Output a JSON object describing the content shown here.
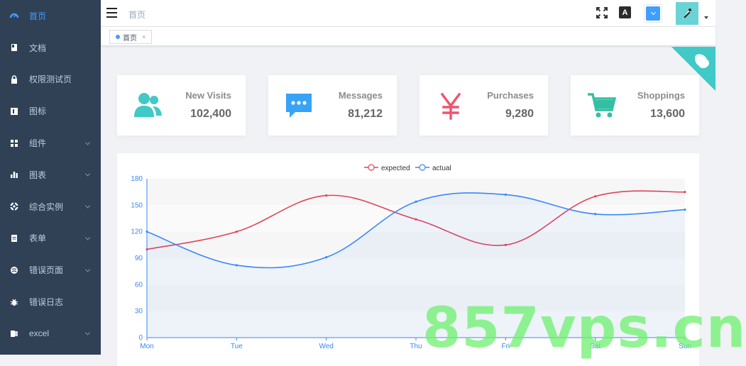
{
  "sidebar": {
    "items": [
      {
        "label": "首页",
        "icon": "dashboard-icon",
        "active": true,
        "has_children": false
      },
      {
        "label": "文档",
        "icon": "document-icon",
        "active": false,
        "has_children": false
      },
      {
        "label": "权限测试页",
        "icon": "lock-icon",
        "active": false,
        "has_children": false
      },
      {
        "label": "图标",
        "icon": "icon-icon",
        "active": false,
        "has_children": false
      },
      {
        "label": "组件",
        "icon": "component-icon",
        "active": false,
        "has_children": true
      },
      {
        "label": "图表",
        "icon": "chart-icon",
        "active": false,
        "has_children": true
      },
      {
        "label": "综合实例",
        "icon": "example-icon",
        "active": false,
        "has_children": true
      },
      {
        "label": "表单",
        "icon": "form-icon",
        "active": false,
        "has_children": true
      },
      {
        "label": "错误页面",
        "icon": "error-page-icon",
        "active": false,
        "has_children": true
      },
      {
        "label": "错误日志",
        "icon": "bug-icon",
        "active": false,
        "has_children": false
      },
      {
        "label": "excel",
        "icon": "excel-icon",
        "active": false,
        "has_children": true
      }
    ]
  },
  "header": {
    "breadcrumb": "首页",
    "lang_glyph": "A",
    "theme_color": "#409eff"
  },
  "tags": [
    {
      "label": "首页",
      "close": "×"
    }
  ],
  "cards": [
    {
      "title": "New Visits",
      "value": "102,400",
      "icon": "peoples-icon",
      "color": "#40c9c6"
    },
    {
      "title": "Messages",
      "value": "81,212",
      "icon": "message-icon",
      "color": "#36a3f7"
    },
    {
      "title": "Purchases",
      "value": "9,280",
      "icon": "money-icon",
      "color": "#f4516c"
    },
    {
      "title": "Shoppings",
      "value": "13,600",
      "icon": "shopping-cart-icon",
      "color": "#34bfa3"
    }
  ],
  "chart_data": {
    "type": "line",
    "categories": [
      "Mon",
      "Tue",
      "Wed",
      "Thu",
      "Fri",
      "Sat",
      "Sun"
    ],
    "series": [
      {
        "name": "expected",
        "values": [
          100,
          120,
          161,
          134,
          105,
          160,
          165
        ],
        "color": "#e0435a"
      },
      {
        "name": "actual",
        "values": [
          120,
          82,
          91,
          154,
          162,
          140,
          145
        ],
        "color": "#3888fa"
      }
    ],
    "yticks": [
      0,
      30,
      60,
      90,
      120,
      150,
      180
    ],
    "ylim": [
      0,
      180
    ],
    "legend_position": "top-center",
    "grid": true
  },
  "watermark": "857vps.cn"
}
